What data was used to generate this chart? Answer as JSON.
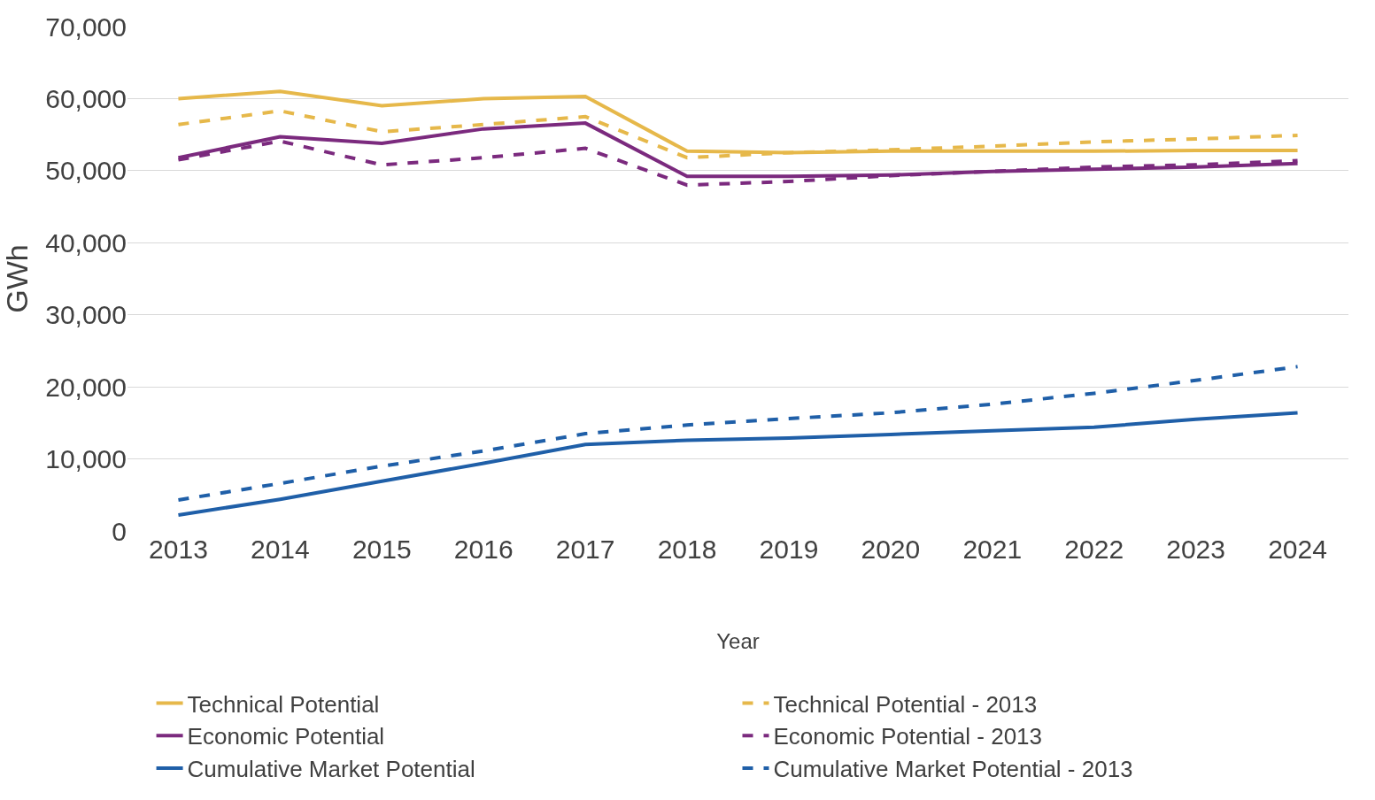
{
  "chart_data": {
    "type": "line",
    "xlabel": "Year",
    "ylabel": "GWh",
    "categories": [
      "2013",
      "2014",
      "2015",
      "2016",
      "2017",
      "2018",
      "2019",
      "2020",
      "2021",
      "2022",
      "2023",
      "2024"
    ],
    "ylim": [
      0,
      70000
    ],
    "yticks": [
      {
        "value": 0,
        "label": "0"
      },
      {
        "value": 10000,
        "label": "10,000"
      },
      {
        "value": 20000,
        "label": "20,000"
      },
      {
        "value": 30000,
        "label": "30,000"
      },
      {
        "value": 40000,
        "label": "40,000"
      },
      {
        "value": 50000,
        "label": "50,000"
      },
      {
        "value": 60000,
        "label": "60,000"
      },
      {
        "value": 70000,
        "label": "70,000"
      }
    ],
    "grid": "y",
    "legend": "bottom",
    "marker": "none",
    "series": [
      {
        "name": "Technical Potential",
        "color": "#e6b84a",
        "line_style": "solid",
        "values": [
          60000,
          61000,
          59000,
          60000,
          60300,
          52700,
          52500,
          52700,
          52700,
          52700,
          52800,
          52800
        ]
      },
      {
        "name": "Technical Potential - 2013",
        "color": "#e6b84a",
        "line_style": "dashed",
        "values": [
          56400,
          58300,
          55400,
          56400,
          57500,
          51800,
          52500,
          52900,
          53400,
          54000,
          54400,
          54900
        ]
      },
      {
        "name": "Economic Potential",
        "color": "#7b2a7e",
        "line_style": "solid",
        "values": [
          51800,
          54700,
          53800,
          55800,
          56600,
          49200,
          49200,
          49400,
          49900,
          50200,
          50500,
          51000
        ]
      },
      {
        "name": "Economic Potential - 2013",
        "color": "#7b2a7e",
        "line_style": "dashed",
        "values": [
          51500,
          54100,
          50800,
          51800,
          53100,
          48000,
          48500,
          49300,
          49900,
          50500,
          50800,
          51400
        ]
      },
      {
        "name": "Cumulative Market Potential",
        "color": "#1f5fa8",
        "line_style": "solid",
        "values": [
          2200,
          4400,
          6900,
          9400,
          12000,
          12600,
          12900,
          13400,
          13900,
          14400,
          15500,
          16400
        ]
      },
      {
        "name": "Cumulative Market Potential - 2013",
        "color": "#1f5fa8",
        "line_style": "dashed",
        "values": [
          4300,
          6600,
          9000,
          11100,
          13500,
          14700,
          15600,
          16400,
          17600,
          19100,
          20900,
          22800
        ]
      }
    ]
  }
}
